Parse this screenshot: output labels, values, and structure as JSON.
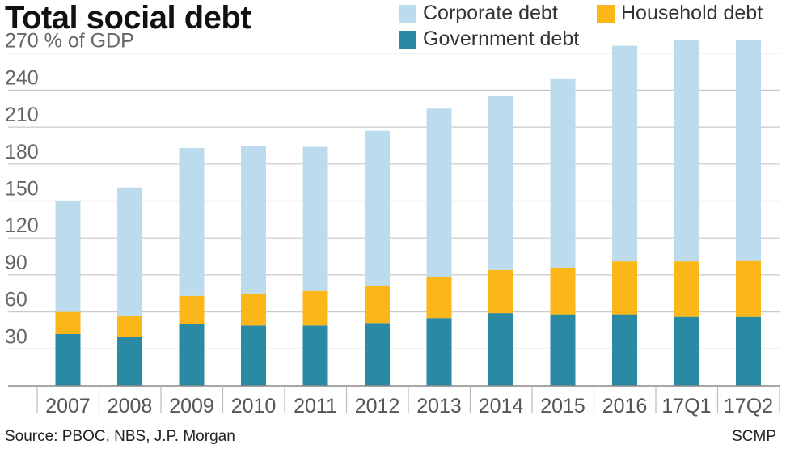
{
  "header": {
    "title": "Total social debt"
  },
  "footer": {
    "source": "Source: PBOC, NBS, J.P. Morgan",
    "credit": "SCMP"
  },
  "chart_data": {
    "type": "bar",
    "stacked": true,
    "title": "Total social debt",
    "ylabel": "% of GDP",
    "yaxis_top_label": "270 % of GDP",
    "ylim": [
      0,
      280
    ],
    "yticks": [
      30,
      60,
      90,
      120,
      150,
      180,
      210,
      240,
      270
    ],
    "grid": true,
    "legend_position": "top-right",
    "categories": [
      "2007",
      "2008",
      "2009",
      "2010",
      "2011",
      "2012",
      "2013",
      "2014",
      "2015",
      "2016",
      "17Q1",
      "17Q2"
    ],
    "series": [
      {
        "name": "Government debt",
        "color": "#2a8aa3",
        "values": [
          42,
          40,
          50,
          49,
          49,
          51,
          55,
          59,
          58,
          58,
          56,
          56
        ]
      },
      {
        "name": "Household debt",
        "color": "#fbb619",
        "values": [
          18,
          17,
          23,
          26,
          28,
          30,
          33,
          35,
          38,
          43,
          45,
          46
        ]
      },
      {
        "name": "Corporate debt",
        "color": "#bcdced",
        "values": [
          90,
          104,
          120,
          120,
          117,
          126,
          137,
          141,
          153,
          175,
          180,
          179
        ]
      }
    ],
    "legend": [
      {
        "name": "Corporate debt",
        "color": "#bcdced"
      },
      {
        "name": "Household debt",
        "color": "#fbb619"
      },
      {
        "name": "Government debt",
        "color": "#2a8aa3"
      }
    ]
  }
}
